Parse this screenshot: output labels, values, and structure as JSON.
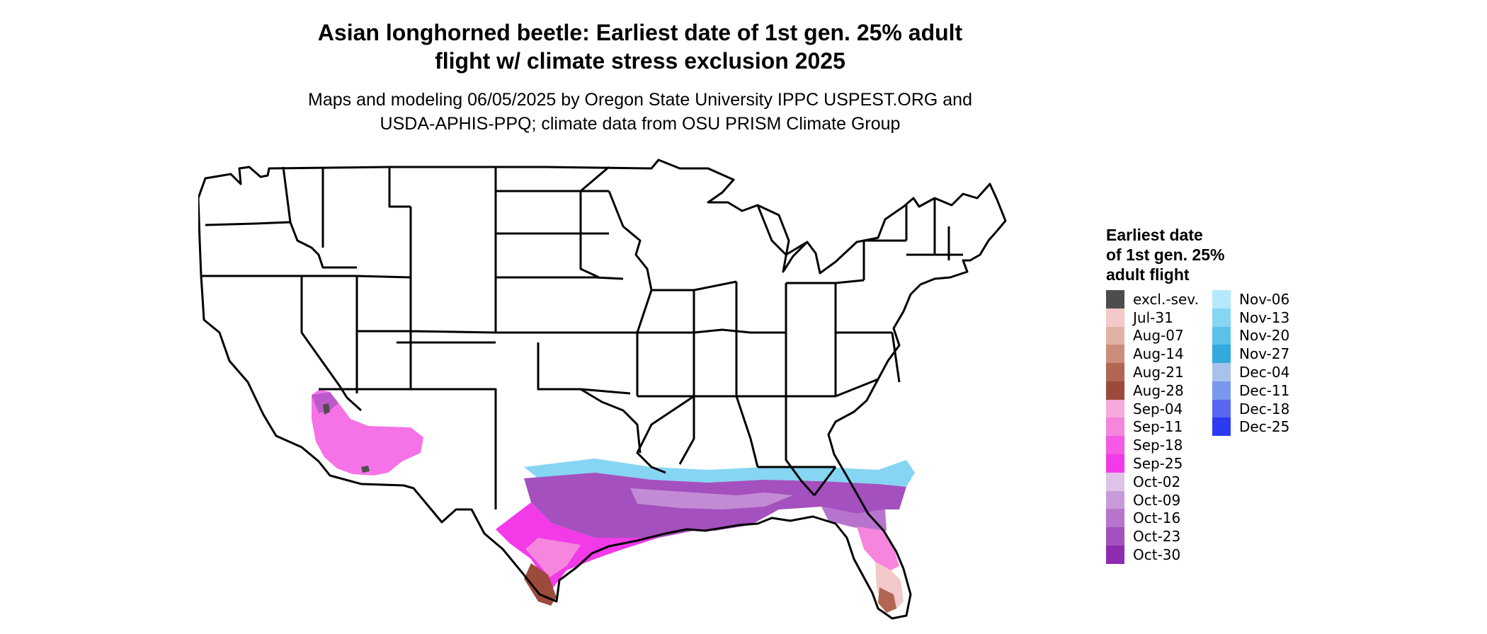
{
  "title": {
    "line1": "Asian longhorned beetle: Earliest date of 1st gen. 25% adult",
    "line2": "flight w/ climate stress exclusion 2025"
  },
  "subtitle": {
    "line1": "Maps and modeling 06/05/2025 by Oregon State University IPPC USPEST.ORG and",
    "line2": "USDA-APHIS-PPQ; climate data from OSU PRISM Climate Group"
  },
  "legend": {
    "title_lines": [
      "Earliest date",
      "of 1st gen. 25%",
      "adult flight"
    ],
    "column1": [
      {
        "label": "excl.-sev.",
        "color": "#4d4d4d"
      },
      {
        "label": "Jul-31",
        "color": "#f3c9c9"
      },
      {
        "label": "Aug-07",
        "color": "#e2b1a5"
      },
      {
        "label": "Aug-14",
        "color": "#cc8d7c"
      },
      {
        "label": "Aug-21",
        "color": "#b26553"
      },
      {
        "label": "Aug-28",
        "color": "#9c4b3a"
      },
      {
        "label": "Sep-04",
        "color": "#f7a8dc"
      },
      {
        "label": "Sep-11",
        "color": "#f585dd"
      },
      {
        "label": "Sep-18",
        "color": "#f45ae3"
      },
      {
        "label": "Sep-25",
        "color": "#f33ae8"
      },
      {
        "label": "Oct-02",
        "color": "#dfc2e7"
      },
      {
        "label": "Oct-09",
        "color": "#c99ad9"
      },
      {
        "label": "Oct-16",
        "color": "#b774cc"
      },
      {
        "label": "Oct-23",
        "color": "#a450bf"
      },
      {
        "label": "Oct-30",
        "color": "#8e2bb1"
      }
    ],
    "column2": [
      {
        "label": "Nov-06",
        "color": "#b3e9fb"
      },
      {
        "label": "Nov-13",
        "color": "#86d5f3"
      },
      {
        "label": "Nov-20",
        "color": "#5cc1ea"
      },
      {
        "label": "Nov-27",
        "color": "#33a9dd"
      },
      {
        "label": "Dec-04",
        "color": "#a7c3ec"
      },
      {
        "label": "Dec-11",
        "color": "#7a97ef"
      },
      {
        "label": "Dec-18",
        "color": "#5767f1"
      },
      {
        "label": "Dec-25",
        "color": "#2d3af3"
      }
    ]
  },
  "map": {
    "regions": [
      {
        "name": "california-arizona-desert",
        "color": "#f45ae3"
      },
      {
        "name": "south-texas",
        "color": "#f33ae8"
      },
      {
        "name": "gulf-coast",
        "color": "#a450bf"
      },
      {
        "name": "florida-peninsula",
        "color": "#f585dd"
      },
      {
        "name": "south-florida",
        "color": "#f3c9c9"
      },
      {
        "name": "excluded-severe",
        "color": "#4d4d4d"
      }
    ]
  }
}
